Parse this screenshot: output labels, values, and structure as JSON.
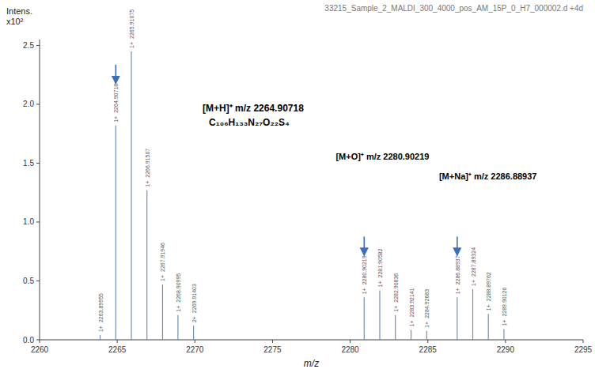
{
  "chart_data": {
    "type": "stem",
    "title": "33215_Sample_2_MALDI_300_4000_pos_AM_15P_0_H7_000002.d +4d",
    "xlabel": "m/z",
    "ylabel": [
      "Intens.",
      "x10²"
    ],
    "x": [
      2263.89955,
      2264.90718,
      2265.91075,
      2266.91507,
      2267.91946,
      2268.90995,
      2269.91403,
      2280.90219,
      2281.90582,
      2282.90836,
      2283.92141,
      2284.92683,
      2286.88937,
      2287.89324,
      2288.89762,
      2289.9012
    ],
    "values": [
      0.04,
      1.82,
      2.45,
      1.27,
      0.47,
      0.21,
      0.12,
      0.36,
      0.42,
      0.21,
      0.085,
      0.075,
      0.36,
      0.43,
      0.22,
      0.09
    ],
    "labels": [
      "2263.89955",
      "2264.90718",
      "2265.91075",
      "2266.91507",
      "2267.91946",
      "2268.90995",
      "2269.91403",
      "2280.90219",
      "2281.90582",
      "2282.90836",
      "2283.92141",
      "2284.92683",
      "2286.88937",
      "2287.89324",
      "2288.89762",
      "2289.90120"
    ],
    "charges": [
      "1+",
      "1+",
      "1+",
      "1+",
      "1+",
      "1+",
      "2+",
      "1+",
      "1+",
      "1+",
      "1+",
      "1+",
      "1+",
      "1+",
      "1+",
      "1+"
    ],
    "color": "#7090b8",
    "xlim": [
      2260,
      2295
    ],
    "ylim": [
      0.0,
      2.55
    ],
    "xticks": [
      2260,
      2265,
      2270,
      2275,
      2280,
      2285,
      2290,
      2295
    ],
    "yticks": [
      {
        "value": 0.0,
        "label": "0.0"
      },
      0.5,
      {
        "value": 1.0,
        "label": "1.0"
      },
      1.5,
      {
        "value": 2.0,
        "label": "2.0"
      },
      2.5
    ],
    "grid": false,
    "annotations": [
      {
        "text": "[M+H]⁺ m/z 2264.90718",
        "subtext": "C₁₀₆H₁₃₃N₂₇O₂₂S₄",
        "x": 2264.90718,
        "y": 1.82,
        "color": "#3a6fbe"
      },
      {
        "text": "[M+O]⁺ m/z 2280.90219",
        "x": 2280.90219,
        "y": 0.36,
        "color": "#3a6fbe"
      },
      {
        "text": "[M+Na]⁺ m/z 2286.88937",
        "x": 2286.88937,
        "y": 0.36,
        "color": "#3a6fbe"
      }
    ]
  }
}
